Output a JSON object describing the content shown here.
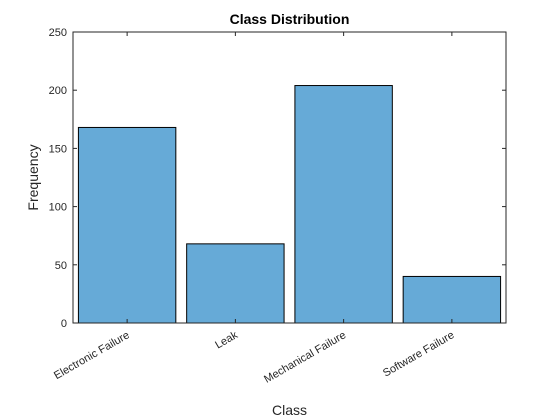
{
  "chart_data": {
    "type": "bar",
    "title": "Class Distribution",
    "xlabel": "Class",
    "ylabel": "Frequency",
    "categories": [
      "Electronic Failure",
      "Leak",
      "Mechanical Failure",
      "Software Failure"
    ],
    "values": [
      168,
      68,
      204,
      40
    ],
    "ylim": [
      0,
      250
    ],
    "yticks": [
      "0",
      "50",
      "100",
      "150",
      "200",
      "250"
    ],
    "grid": false,
    "legend": "none",
    "bar_color": "#66aad7",
    "edge_color": "#000000"
  }
}
